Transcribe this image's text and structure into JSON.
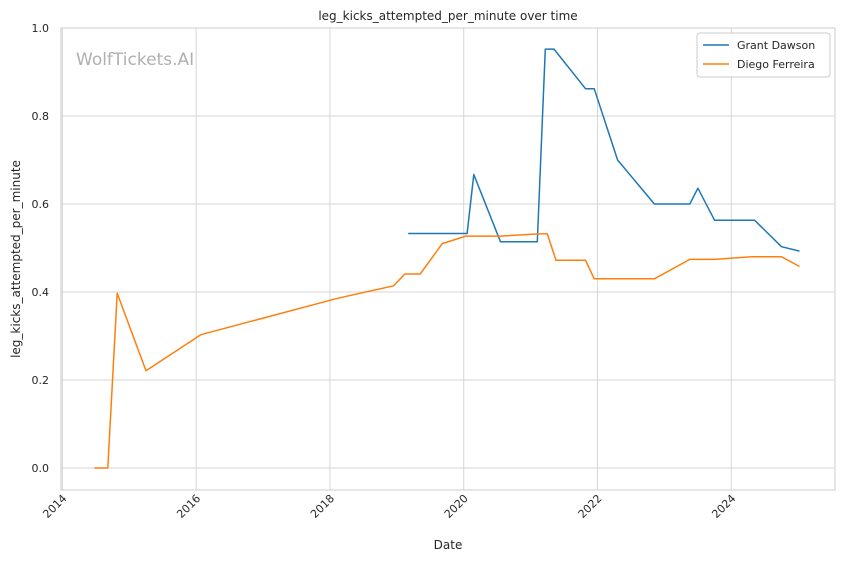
{
  "chart_data": {
    "type": "line",
    "title": "leg_kicks_attempted_per_minute over time",
    "xlabel": "Date",
    "ylabel": "leg_kicks_attempted_per_minute",
    "xlim": [
      2013.98,
      2025.55
    ],
    "ylim": [
      -0.05,
      1.0
    ],
    "x_ticks": [
      2014,
      2016,
      2018,
      2020,
      2022,
      2024
    ],
    "y_ticks": [
      0.0,
      0.2,
      0.4,
      0.6,
      0.8,
      1.0
    ],
    "y_tick_labels": [
      "0.0",
      "0.2",
      "0.4",
      "0.6",
      "0.8",
      "1.0"
    ],
    "grid": true,
    "legend_position": "top-right",
    "watermark": "WolfTickets.AI",
    "series": [
      {
        "name": "Grant Dawson",
        "color": "#1f77b4",
        "x": [
          2019.17,
          2020.05,
          2020.15,
          2020.55,
          2021.1,
          2021.22,
          2021.35,
          2021.82,
          2021.95,
          2022.3,
          2022.85,
          2023.38,
          2023.5,
          2023.75,
          2024.35,
          2024.75,
          2025.02
        ],
        "y": [
          0.533,
          0.533,
          0.667,
          0.514,
          0.514,
          0.952,
          0.952,
          0.862,
          0.862,
          0.7,
          0.6,
          0.6,
          0.636,
          0.563,
          0.563,
          0.503,
          0.493
        ]
      },
      {
        "name": "Diego Ferreira",
        "color": "#ff7f0e",
        "x": [
          2014.48,
          2014.68,
          2014.82,
          2015.25,
          2016.07,
          2018.12,
          2018.95,
          2019.12,
          2019.35,
          2019.68,
          2020.03,
          2020.55,
          2021.12,
          2021.25,
          2021.38,
          2021.82,
          2021.95,
          2022.85,
          2023.38,
          2023.75,
          2024.3,
          2024.75,
          2025.02
        ],
        "y": [
          0.0,
          0.0,
          0.397,
          0.221,
          0.303,
          0.386,
          0.414,
          0.441,
          0.441,
          0.51,
          0.527,
          0.527,
          0.532,
          0.532,
          0.472,
          0.472,
          0.43,
          0.43,
          0.474,
          0.474,
          0.48,
          0.48,
          0.458
        ]
      }
    ]
  }
}
